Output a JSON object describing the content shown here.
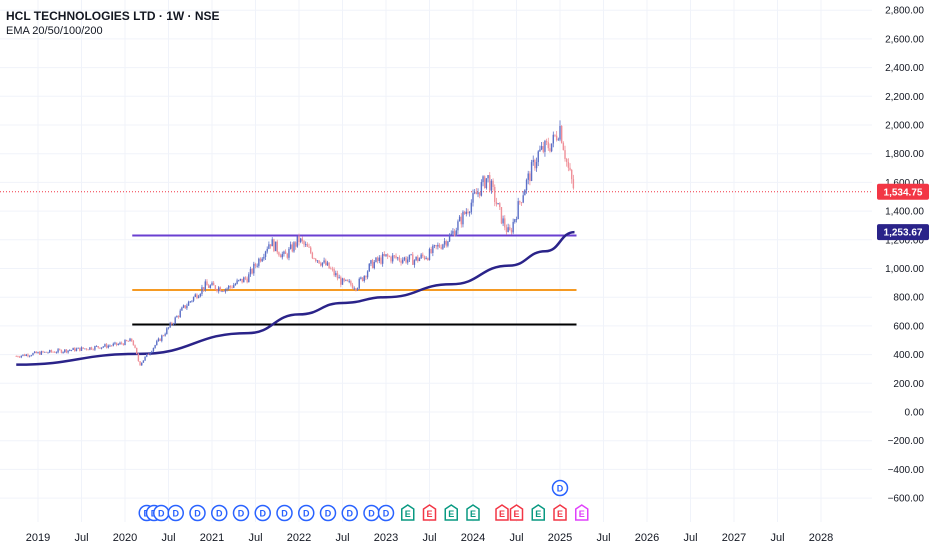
{
  "header": {
    "title": "HCL TECHNOLOGIES LTD · 1W · NSE",
    "indicator": "EMA 20/50/100/200"
  },
  "colors": {
    "up": "#5b6fc7",
    "down": "#ef8f98",
    "ema": "#2a2389",
    "resistance": "#6a3fd1",
    "support_mid": "#f59a23",
    "support_low": "#000000",
    "last_price_badge": "#f23645",
    "ema_badge": "#2a2389",
    "dividend": "#2962ff",
    "earnings_green": "#089981",
    "earnings_red": "#f23645",
    "earnings_pink": "#e040fb"
  },
  "chart_data": {
    "type": "candlestick",
    "title": "HCL TECHNOLOGIES LTD · 1W · NSE",
    "indicator": "EMA 20/50/100/200",
    "x_ticks": [
      "2019",
      "Jul",
      "2020",
      "Jul",
      "2021",
      "Jul",
      "2022",
      "Jul",
      "2023",
      "Jul",
      "2024",
      "Jul",
      "2025",
      "Jul",
      "2026",
      "Jul",
      "2027",
      "Jul",
      "2028"
    ],
    "y_ticks": [
      "2,800.00",
      "2,600.00",
      "2,400.00",
      "2,200.00",
      "2,000.00",
      "1,800.00",
      "1,600.00",
      "1,400.00",
      "1,200.00",
      "1,000.00",
      "800.00",
      "600.00",
      "400.00",
      "200.00",
      "0.00",
      "−200.00",
      "−400.00",
      "−600.00"
    ],
    "ylim": [
      -650,
      2850
    ],
    "price_path": [
      {
        "date": "2018-10",
        "close": 390
      },
      {
        "date": "2019-01",
        "close": 410
      },
      {
        "date": "2019-07",
        "close": 440
      },
      {
        "date": "2019-12",
        "close": 470
      },
      {
        "date": "2020-02",
        "close": 500
      },
      {
        "date": "2020-03",
        "close": 330
      },
      {
        "date": "2020-06",
        "close": 520
      },
      {
        "date": "2020-09",
        "close": 720
      },
      {
        "date": "2020-12",
        "close": 880
      },
      {
        "date": "2021-03",
        "close": 860
      },
      {
        "date": "2021-06",
        "close": 940
      },
      {
        "date": "2021-09",
        "close": 1190
      },
      {
        "date": "2021-11",
        "close": 1080
      },
      {
        "date": "2022-01",
        "close": 1200
      },
      {
        "date": "2022-03",
        "close": 1090
      },
      {
        "date": "2022-05",
        "close": 1010
      },
      {
        "date": "2022-07",
        "close": 900
      },
      {
        "date": "2022-09",
        "close": 880
      },
      {
        "date": "2022-11",
        "close": 1030
      },
      {
        "date": "2023-01",
        "close": 1080
      },
      {
        "date": "2023-05",
        "close": 1060
      },
      {
        "date": "2023-07",
        "close": 1100
      },
      {
        "date": "2023-10",
        "close": 1230
      },
      {
        "date": "2024-01",
        "close": 1480
      },
      {
        "date": "2024-03",
        "close": 1640
      },
      {
        "date": "2024-05",
        "close": 1340
      },
      {
        "date": "2024-06",
        "close": 1235
      },
      {
        "date": "2024-08",
        "close": 1550
      },
      {
        "date": "2024-10",
        "close": 1800
      },
      {
        "date": "2024-12",
        "close": 1880
      },
      {
        "date": "2025-01",
        "close": 1990
      },
      {
        "date": "2025-02",
        "close": 1720
      },
      {
        "date": "2025-03",
        "close": 1534.75
      }
    ],
    "ema_path": [
      {
        "date": "2018-10",
        "value": 330
      },
      {
        "date": "2020-03",
        "value": 405
      },
      {
        "date": "2021-06",
        "value": 550
      },
      {
        "date": "2022-01",
        "value": 680
      },
      {
        "date": "2022-07",
        "value": 760
      },
      {
        "date": "2023-01",
        "value": 800
      },
      {
        "date": "2023-10",
        "value": 890
      },
      {
        "date": "2024-06",
        "value": 1020
      },
      {
        "date": "2024-11",
        "value": 1120
      },
      {
        "date": "2025-03",
        "value": 1253.67
      }
    ],
    "horizontal_levels": [
      {
        "name": "resistance",
        "value": 1230,
        "from": "2020-02",
        "to": "2025-03"
      },
      {
        "name": "support_mid",
        "value": 850,
        "from": "2020-02",
        "to": "2025-03"
      },
      {
        "name": "support_low",
        "value": 610,
        "from": "2020-02",
        "to": "2025-03"
      }
    ],
    "last_price": "1,534.75",
    "ema_last": "1,253.67",
    "events": [
      {
        "date": "2020-04",
        "type": "D"
      },
      {
        "date": "2020-05",
        "type": "D"
      },
      {
        "date": "2020-06",
        "type": "D"
      },
      {
        "date": "2020-08",
        "type": "D"
      },
      {
        "date": "2020-11",
        "type": "D"
      },
      {
        "date": "2021-02",
        "type": "D"
      },
      {
        "date": "2021-05",
        "type": "D"
      },
      {
        "date": "2021-08",
        "type": "D"
      },
      {
        "date": "2021-11",
        "type": "D"
      },
      {
        "date": "2022-02",
        "type": "D"
      },
      {
        "date": "2022-05",
        "type": "D"
      },
      {
        "date": "2022-08",
        "type": "D"
      },
      {
        "date": "2022-11",
        "type": "D"
      },
      {
        "date": "2023-01",
        "type": "D"
      },
      {
        "date": "2023-04",
        "type": "E",
        "color": "green"
      },
      {
        "date": "2023-07",
        "type": "E",
        "color": "red"
      },
      {
        "date": "2023-10",
        "type": "E",
        "color": "green"
      },
      {
        "date": "2024-01",
        "type": "E",
        "color": "green"
      },
      {
        "date": "2024-05",
        "type": "E",
        "color": "red"
      },
      {
        "date": "2024-07",
        "type": "E",
        "color": "red"
      },
      {
        "date": "2024-10",
        "type": "E",
        "color": "green"
      },
      {
        "date": "2025-01",
        "type": "D",
        "stacked": true
      },
      {
        "date": "2025-01",
        "type": "E",
        "color": "red"
      },
      {
        "date": "2025-04",
        "type": "E",
        "color": "pink"
      }
    ]
  }
}
